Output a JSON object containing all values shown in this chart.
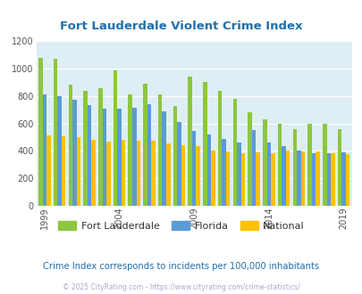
{
  "title": "Fort Lauderdale Violent Crime Index",
  "years": [
    1999,
    2000,
    2001,
    2002,
    2003,
    2004,
    2005,
    2006,
    2007,
    2008,
    2009,
    2010,
    2011,
    2012,
    2013,
    2014,
    2015,
    2016,
    2017,
    2018,
    2019
  ],
  "fort_lauderdale": [
    1080,
    1070,
    880,
    840,
    855,
    990,
    810,
    890,
    810,
    730,
    940,
    905,
    840,
    780,
    680,
    630,
    600,
    560,
    595,
    600,
    560
  ],
  "florida": [
    810,
    800,
    775,
    735,
    710,
    710,
    715,
    740,
    690,
    610,
    545,
    520,
    490,
    460,
    550,
    460,
    435,
    405,
    385,
    385,
    390
  ],
  "national": [
    515,
    505,
    500,
    480,
    465,
    480,
    475,
    475,
    455,
    440,
    435,
    405,
    395,
    380,
    390,
    385,
    400,
    395,
    395,
    380,
    375
  ],
  "colors": {
    "fort_lauderdale": "#8dc63f",
    "florida": "#5b9bd5",
    "national": "#ffc000"
  },
  "ylim": [
    0,
    1200
  ],
  "yticks": [
    0,
    200,
    400,
    600,
    800,
    1000,
    1200
  ],
  "xtick_years": [
    1999,
    2004,
    2009,
    2014,
    2019
  ],
  "bg_color": "#ddeef4",
  "title_color": "#1f6fad",
  "subtitle": "Crime Index corresponds to incidents per 100,000 inhabitants",
  "subtitle_color": "#1f6fad",
  "footer": "© 2025 CityRating.com - https://www.cityrating.com/crime-statistics/",
  "footer_color": "#aaaacc",
  "legend_labels": [
    "Fort Lauderdale",
    "Florida",
    "National"
  ],
  "legend_text_color": "#333333"
}
